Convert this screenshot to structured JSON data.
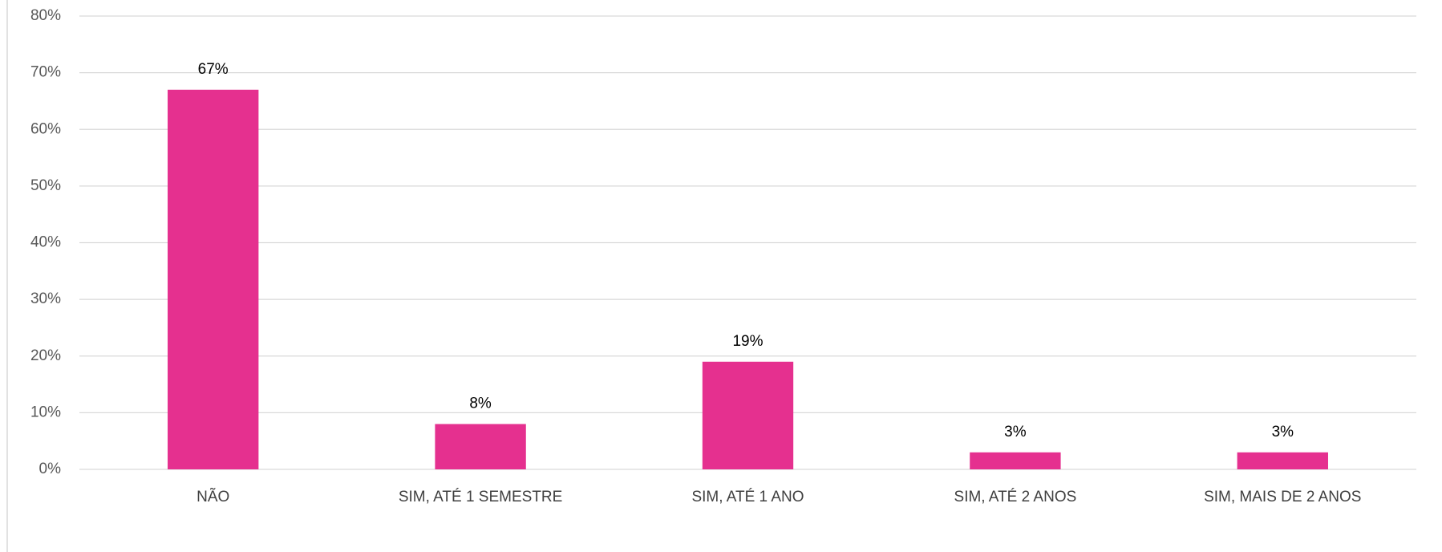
{
  "chart_data": {
    "type": "bar",
    "categories": [
      "NÃO",
      "SIM, ATÉ 1 SEMESTRE",
      "SIM, ATÉ 1 ANO",
      "SIM, ATÉ 2 ANOS",
      "SIM, MAIS DE 2 ANOS"
    ],
    "values": [
      67,
      8,
      19,
      3,
      3
    ],
    "value_labels": [
      "67%",
      "8%",
      "19%",
      "3%",
      "3%"
    ],
    "color": "#e5308f",
    "ylim": [
      0,
      80
    ],
    "yticks": [
      {
        "value": 0,
        "label": "0%"
      },
      {
        "value": 10,
        "label": "10%"
      },
      {
        "value": 20,
        "label": "20%"
      },
      {
        "value": 30,
        "label": "30%"
      },
      {
        "value": 40,
        "label": "40%"
      },
      {
        "value": 50,
        "label": "50%"
      },
      {
        "value": 60,
        "label": "60%"
      },
      {
        "value": 70,
        "label": "70%"
      },
      {
        "value": 80,
        "label": "80%"
      }
    ],
    "grid": true
  }
}
